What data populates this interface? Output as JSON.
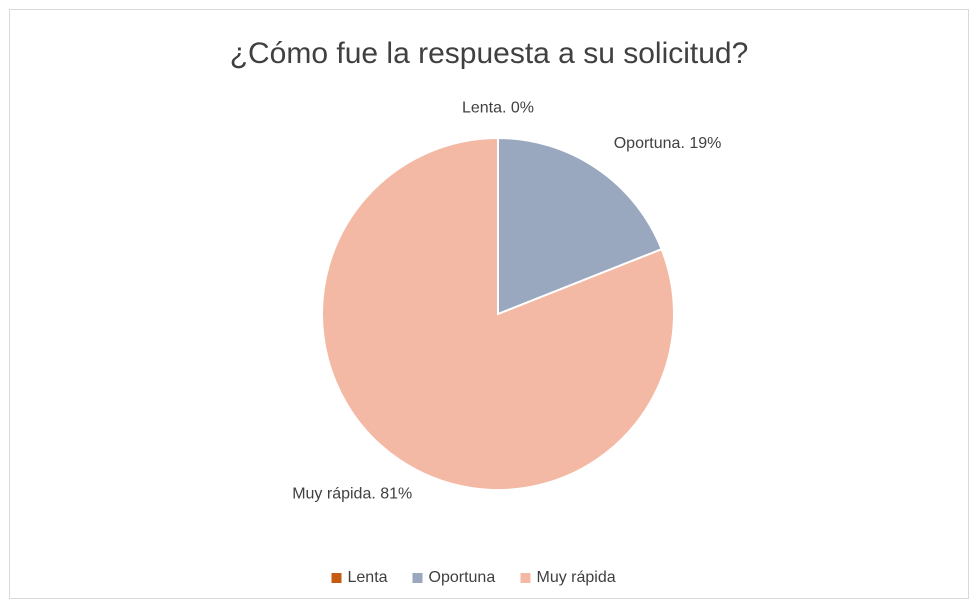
{
  "chart_data": {
    "type": "pie",
    "title": "¿Cómo fue la respuesta a su solicitud?",
    "categories": [
      "Lenta",
      "Oportuna",
      "Muy rápida"
    ],
    "values": [
      0,
      19,
      81
    ],
    "value_labels": [
      "Lenta. 0%",
      "Oportuna. 19%",
      "Muy rápida. 81%"
    ],
    "colors": [
      "#c55a11",
      "#9aa8bf",
      "#f4b9a4"
    ],
    "legend": "bottom"
  }
}
